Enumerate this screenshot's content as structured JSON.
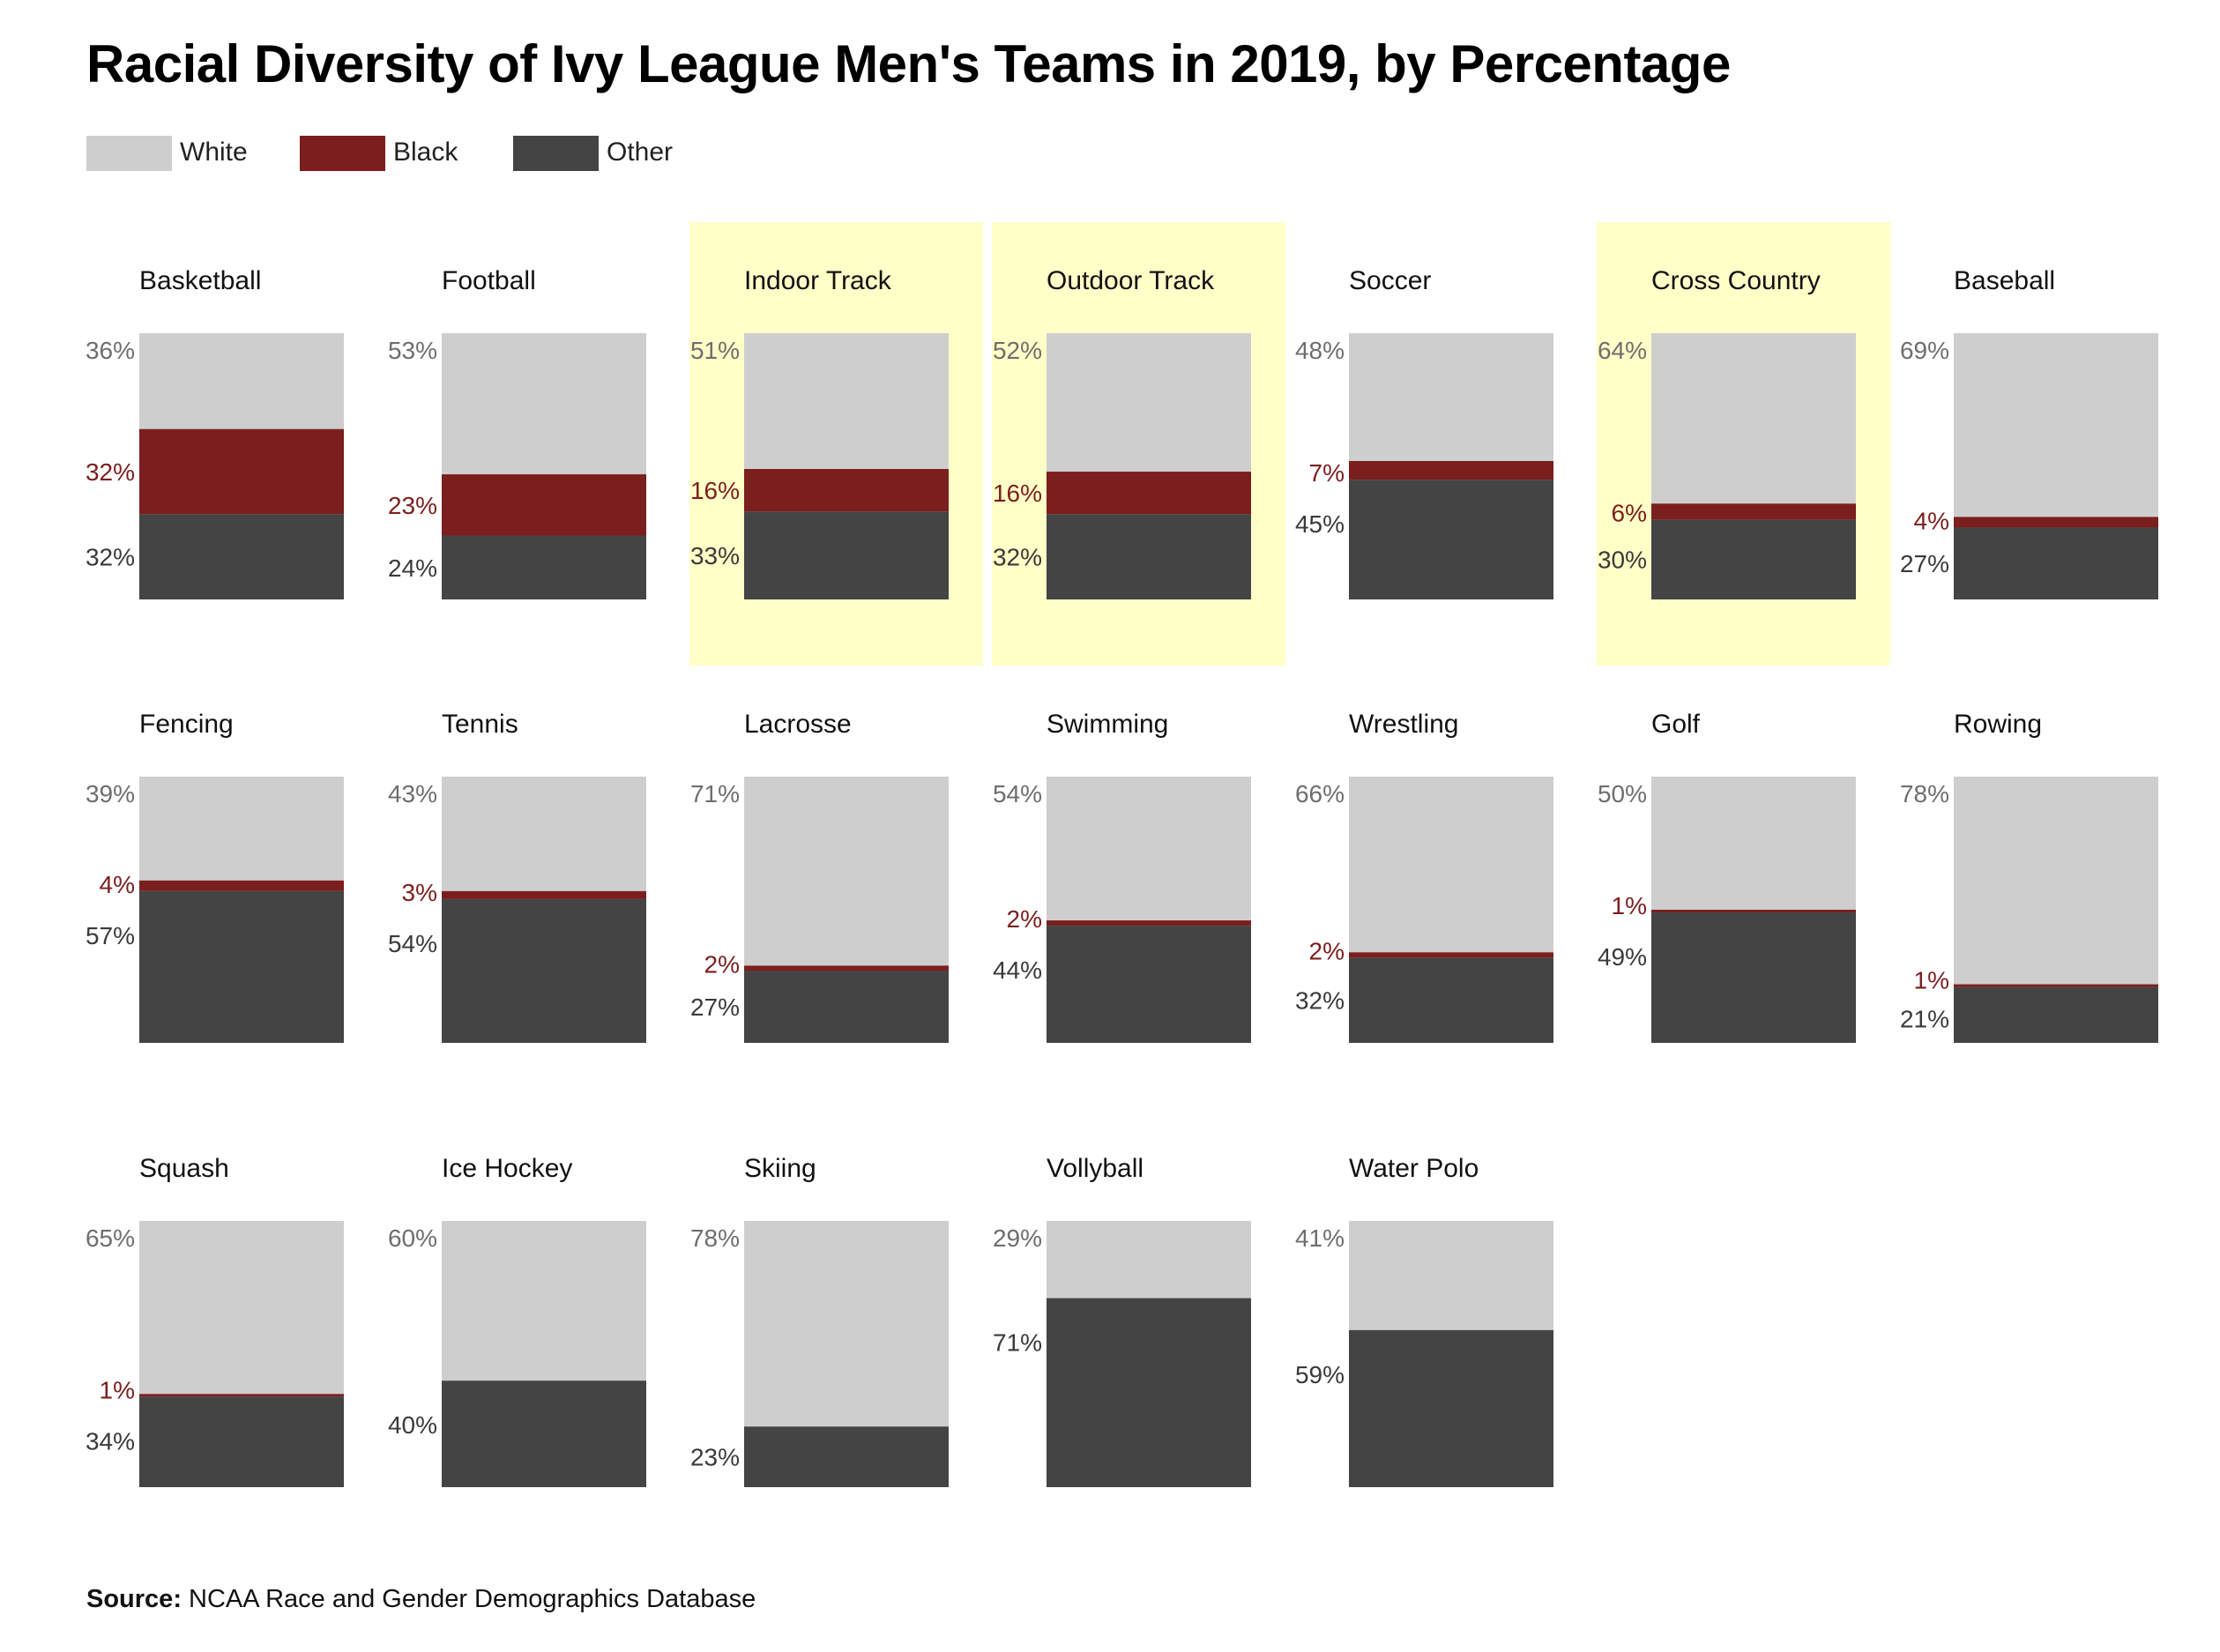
{
  "chart_data": {
    "type": "bar",
    "title": "Racial Diversity of Ivy League Men's Teams in 2019, by Percentage",
    "legend": [
      {
        "name": "White",
        "color": "#cecece"
      },
      {
        "name": "Black",
        "color": "#7b1e1e"
      },
      {
        "name": "Other",
        "color": "#444444"
      }
    ],
    "label_colors": {
      "White": "#6e6e6e",
      "Black": "#7b1e1e",
      "Other": "#3a3a3a"
    },
    "highlight_color": "#ffffc8",
    "panels": [
      {
        "sport": "Basketball",
        "white": 36,
        "black": 32,
        "other": 32,
        "highlight": false
      },
      {
        "sport": "Football",
        "white": 53,
        "black": 23,
        "other": 24,
        "highlight": false
      },
      {
        "sport": "Indoor Track",
        "white": 51,
        "black": 16,
        "other": 33,
        "highlight": true
      },
      {
        "sport": "Outdoor Track",
        "white": 52,
        "black": 16,
        "other": 32,
        "highlight": true
      },
      {
        "sport": "Soccer",
        "white": 48,
        "black": 7,
        "other": 45,
        "highlight": false
      },
      {
        "sport": "Cross Country",
        "white": 64,
        "black": 6,
        "other": 30,
        "highlight": true
      },
      {
        "sport": "Baseball",
        "white": 69,
        "black": 4,
        "other": 27,
        "highlight": false
      },
      {
        "sport": "Fencing",
        "white": 39,
        "black": 4,
        "other": 57,
        "highlight": false
      },
      {
        "sport": "Tennis",
        "white": 43,
        "black": 3,
        "other": 54,
        "highlight": false
      },
      {
        "sport": "Lacrosse",
        "white": 71,
        "black": 2,
        "other": 27,
        "highlight": false
      },
      {
        "sport": "Swimming",
        "white": 54,
        "black": 2,
        "other": 44,
        "highlight": false
      },
      {
        "sport": "Wrestling",
        "white": 66,
        "black": 2,
        "other": 32,
        "highlight": false
      },
      {
        "sport": "Golf",
        "white": 50,
        "black": 1,
        "other": 49,
        "highlight": false
      },
      {
        "sport": "Rowing",
        "white": 78,
        "black": 1,
        "other": 21,
        "highlight": false
      },
      {
        "sport": "Squash",
        "white": 65,
        "black": 1,
        "other": 34,
        "highlight": false
      },
      {
        "sport": "Ice Hockey",
        "white": 60,
        "black": 0,
        "other": 40,
        "highlight": false
      },
      {
        "sport": "Skiing",
        "white": 78,
        "black": 0,
        "other": 23,
        "highlight": false
      },
      {
        "sport": "Vollyball",
        "white": 29,
        "black": 0,
        "other": 71,
        "highlight": false
      },
      {
        "sport": "Water Polo",
        "white": 41,
        "black": 0,
        "other": 59,
        "highlight": false
      }
    ],
    "source_label": "Source:",
    "source_text": "NCAA Race and Gender Demographics Database"
  }
}
